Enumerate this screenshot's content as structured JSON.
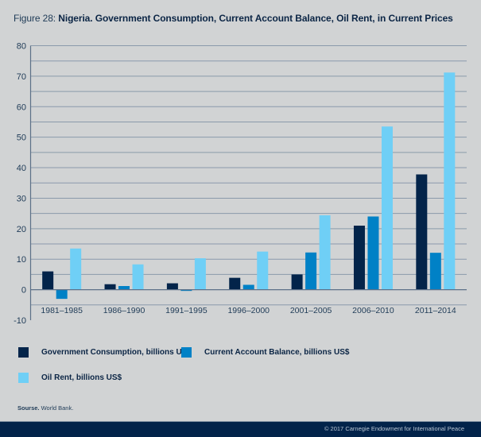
{
  "title": {
    "prefix": "Figure 28: ",
    "main": "Nigeria. Government Consumption, Current Account Balance, Oil Rent, in Current Prices"
  },
  "chart_data": {
    "type": "bar",
    "title": "Figure 28: Nigeria. Government Consumption, Current Account Balance, Oil Rent, in Current Prices",
    "xlabel": "",
    "ylabel": "",
    "ylim": [
      -10,
      80
    ],
    "yticks": [
      80,
      70,
      60,
      50,
      40,
      30,
      20,
      10,
      0,
      -10
    ],
    "ytick_labels": [
      "80",
      "70",
      "60",
      "50",
      "40",
      "30",
      "20",
      "10",
      "0",
      "-10"
    ],
    "grid": true,
    "grid_step": 5,
    "legend_placement": "bottom",
    "categories": [
      "1981–1985",
      "1986–1990",
      "1991–1995",
      "1996–2000",
      "2001–2005",
      "2006–2010",
      "2011–2014"
    ],
    "series": [
      {
        "name": "Government Consumption, billions US$",
        "color": "#03244a",
        "values": [
          6.0,
          1.8,
          2.1,
          3.9,
          5.0,
          21.0,
          37.8
        ]
      },
      {
        "name": "Current Account Balance, billions US$",
        "color": "#0081c6",
        "values": [
          -3.0,
          1.2,
          -0.4,
          1.6,
          12.2,
          24.0,
          12.1
        ]
      },
      {
        "name": "Oil Rent, billions US$",
        "color": "#6fcff6",
        "values": [
          13.5,
          8.3,
          10.3,
          12.5,
          24.4,
          53.5,
          71.2
        ]
      }
    ]
  },
  "source": {
    "label": "Sourse.",
    "text": " World Bank."
  },
  "footer": {
    "text": "© 2017 Carnegie Endowment for International Peace"
  },
  "colors": {
    "background": "#d1d3d4",
    "grid": "#8a9aab",
    "footer": "#02234a"
  }
}
